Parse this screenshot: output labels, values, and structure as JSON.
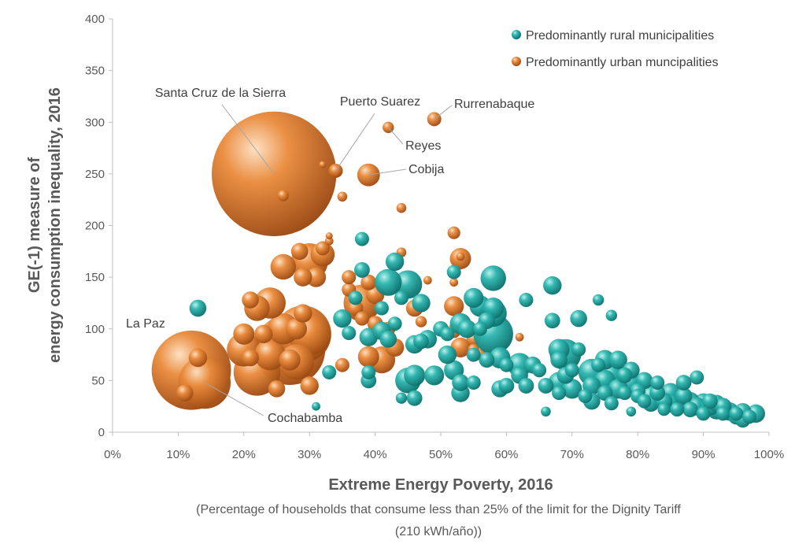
{
  "chart_data": {
    "type": "scatter",
    "title": "",
    "xlabel": "Extreme Energy Poverty, 2016",
    "xlabel_note_line1": "(Percentage of households that consume less than 25% of the limit for the Dignity Tariff",
    "xlabel_note_line2": "(210 kWh/año))",
    "ylabel_line1": "GE(-1) measure of",
    "ylabel_line2": "energy consumption inequality, 2016",
    "xlim": [
      0,
      1
    ],
    "ylim": [
      0,
      400
    ],
    "x_ticks": [
      "0%",
      "10%",
      "20%",
      "30%",
      "40%",
      "50%",
      "60%",
      "70%",
      "80%",
      "90%",
      "100%"
    ],
    "y_ticks": [
      "0",
      "50",
      "100",
      "150",
      "200",
      "250",
      "300",
      "350",
      "400"
    ],
    "grid": false,
    "legend_position": "top-right",
    "colors": {
      "rural": "#17a09b",
      "urban": "#e07a2e",
      "axis": "#bfbfbf",
      "text": "#595959"
    },
    "series": [
      {
        "name": "Predominantly rural municipalities",
        "key": "rural",
        "points": [
          [
            0.13,
            120,
            1.2
          ],
          [
            0.31,
            25,
            0.6
          ],
          [
            0.33,
            58,
            1.0
          ],
          [
            0.35,
            110,
            1.3
          ],
          [
            0.36,
            96,
            1.0
          ],
          [
            0.37,
            130,
            1.0
          ],
          [
            0.38,
            157,
            1.1
          ],
          [
            0.38,
            187,
            1.0
          ],
          [
            0.39,
            92,
            1.3
          ],
          [
            0.39,
            58,
            1.0
          ],
          [
            0.39,
            50,
            1.1
          ],
          [
            0.41,
            120,
            1.0
          ],
          [
            0.41,
            98,
            1.3
          ],
          [
            0.42,
            145,
            1.9
          ],
          [
            0.42,
            90,
            1.2
          ],
          [
            0.43,
            165,
            1.3
          ],
          [
            0.43,
            105,
            1.0
          ],
          [
            0.44,
            130,
            1.0
          ],
          [
            0.44,
            33,
            0.8
          ],
          [
            0.45,
            143,
            2.0
          ],
          [
            0.45,
            50,
            1.8
          ],
          [
            0.46,
            85,
            1.3
          ],
          [
            0.46,
            55,
            1.5
          ],
          [
            0.46,
            33,
            1.1
          ],
          [
            0.47,
            125,
            1.3
          ],
          [
            0.47,
            88,
            1.1
          ],
          [
            0.48,
            90,
            1.3
          ],
          [
            0.49,
            55,
            1.4
          ],
          [
            0.5,
            100,
            1.1
          ],
          [
            0.51,
            75,
            1.3
          ],
          [
            0.51,
            95,
            1.0
          ],
          [
            0.52,
            60,
            1.4
          ],
          [
            0.52,
            155,
            1.0
          ],
          [
            0.53,
            48,
            1.2
          ],
          [
            0.53,
            38,
            1.3
          ],
          [
            0.53,
            105,
            1.5
          ],
          [
            0.54,
            100,
            1.3
          ],
          [
            0.55,
            130,
            1.4
          ],
          [
            0.55,
            75,
            1.0
          ],
          [
            0.55,
            48,
            1.0
          ],
          [
            0.56,
            100,
            1.0
          ],
          [
            0.56,
            122,
            1.5
          ],
          [
            0.57,
            70,
            1.1
          ],
          [
            0.57,
            108,
            1.2
          ],
          [
            0.58,
            149,
            1.8
          ],
          [
            0.58,
            95,
            2.8
          ],
          [
            0.58,
            115,
            1.9
          ],
          [
            0.58,
            120,
            1.5
          ],
          [
            0.59,
            72,
            1.5
          ],
          [
            0.59,
            42,
            1.2
          ],
          [
            0.6,
            45,
            1.1
          ],
          [
            0.6,
            65,
            1.0
          ],
          [
            0.62,
            65,
            1.7
          ],
          [
            0.62,
            55,
            1.2
          ],
          [
            0.63,
            128,
            1.0
          ],
          [
            0.63,
            45,
            1.1
          ],
          [
            0.64,
            65,
            1.2
          ],
          [
            0.65,
            60,
            1.0
          ],
          [
            0.66,
            20,
            0.7
          ],
          [
            0.66,
            45,
            1.1
          ],
          [
            0.67,
            108,
            1.1
          ],
          [
            0.67,
            142,
            1.3
          ],
          [
            0.68,
            48,
            1.5
          ],
          [
            0.68,
            80,
            1.5
          ],
          [
            0.68,
            70,
            1.2
          ],
          [
            0.68,
            38,
            1.0
          ],
          [
            0.69,
            75,
            2.2
          ],
          [
            0.69,
            55,
            1.2
          ],
          [
            0.7,
            60,
            1.0
          ],
          [
            0.7,
            42,
            1.4
          ],
          [
            0.71,
            110,
            1.2
          ],
          [
            0.71,
            80,
            1.0
          ],
          [
            0.72,
            35,
            1.0
          ],
          [
            0.73,
            58,
            1.9
          ],
          [
            0.73,
            45,
            1.3
          ],
          [
            0.73,
            30,
            1.2
          ],
          [
            0.74,
            128,
            0.8
          ],
          [
            0.74,
            65,
            1.0
          ],
          [
            0.75,
            70,
            1.4
          ],
          [
            0.75,
            50,
            1.5
          ],
          [
            0.75,
            38,
            1.1
          ],
          [
            0.76,
            113,
            0.8
          ],
          [
            0.76,
            55,
            1.8
          ],
          [
            0.76,
            28,
            1.0
          ],
          [
            0.77,
            70,
            1.3
          ],
          [
            0.77,
            42,
            1.4
          ],
          [
            0.78,
            55,
            1.1
          ],
          [
            0.78,
            38,
            1.0
          ],
          [
            0.79,
            20,
            0.7
          ],
          [
            0.79,
            60,
            1.2
          ],
          [
            0.79,
            48,
            1.5
          ],
          [
            0.8,
            35,
            1.0
          ],
          [
            0.8,
            40,
            1.1
          ],
          [
            0.81,
            50,
            1.2
          ],
          [
            0.81,
            30,
            1.0
          ],
          [
            0.82,
            35,
            1.5
          ],
          [
            0.82,
            28,
            1.2
          ],
          [
            0.83,
            38,
            1.1
          ],
          [
            0.83,
            48,
            1.0
          ],
          [
            0.84,
            30,
            1.2
          ],
          [
            0.84,
            22,
            0.9
          ],
          [
            0.85,
            38,
            1.4
          ],
          [
            0.85,
            28,
            1.3
          ],
          [
            0.86,
            30,
            1.5
          ],
          [
            0.86,
            22,
            1.0
          ],
          [
            0.87,
            48,
            1.1
          ],
          [
            0.87,
            35,
            1.2
          ],
          [
            0.88,
            30,
            1.3
          ],
          [
            0.88,
            22,
            1.1
          ],
          [
            0.89,
            25,
            1.3
          ],
          [
            0.89,
            53,
            1.0
          ],
          [
            0.9,
            28,
            1.4
          ],
          [
            0.9,
            18,
            1.0
          ],
          [
            0.91,
            25,
            1.3
          ],
          [
            0.91,
            30,
            1.1
          ],
          [
            0.92,
            22,
            1.4
          ],
          [
            0.92,
            28,
            1.2
          ],
          [
            0.93,
            18,
            1.0
          ],
          [
            0.93,
            25,
            1.2
          ],
          [
            0.94,
            20,
            1.3
          ],
          [
            0.95,
            15,
            1.1
          ],
          [
            0.95,
            18,
            1.0
          ],
          [
            0.96,
            12,
            1.1
          ],
          [
            0.96,
            20,
            1.2
          ],
          [
            0.97,
            15,
            1.0
          ],
          [
            0.98,
            18,
            1.3
          ]
        ]
      },
      {
        "name": "Predominantly urban muncipalities",
        "key": "urban",
        "points": [
          [
            0.246,
            250,
            8.8
          ],
          [
            0.12,
            60,
            5.6
          ],
          [
            0.14,
            48,
            3.7
          ],
          [
            0.27,
            80,
            5.0
          ],
          [
            0.29,
            95,
            4.0
          ],
          [
            0.3,
            95,
            3.0
          ],
          [
            0.28,
            68,
            2.5
          ],
          [
            0.22,
            58,
            3.3
          ],
          [
            0.2,
            80,
            2.4
          ],
          [
            0.24,
            75,
            2.2
          ],
          [
            0.26,
            100,
            2.2
          ],
          [
            0.24,
            125,
            2.2
          ],
          [
            0.22,
            120,
            1.8
          ],
          [
            0.2,
            95,
            1.5
          ],
          [
            0.21,
            72,
            1.2
          ],
          [
            0.27,
            70,
            1.5
          ],
          [
            0.28,
            100,
            1.5
          ],
          [
            0.29,
            115,
            1.3
          ],
          [
            0.3,
            165,
            2.6
          ],
          [
            0.32,
            172,
            1.7
          ],
          [
            0.26,
            160,
            1.8
          ],
          [
            0.29,
            150,
            1.3
          ],
          [
            0.31,
            150,
            1.4
          ],
          [
            0.3,
            45,
            1.3
          ],
          [
            0.13,
            72,
            1.3
          ],
          [
            0.11,
            38,
            1.2
          ],
          [
            0.25,
            42,
            1.2
          ],
          [
            0.23,
            95,
            1.3
          ],
          [
            0.21,
            128,
            1.2
          ],
          [
            0.285,
            175,
            1.2
          ],
          [
            0.32,
            178,
            1.0
          ],
          [
            0.33,
            185,
            0.6
          ],
          [
            0.33,
            190,
            0.5
          ],
          [
            0.32,
            259,
            0.5
          ],
          [
            0.34,
            253,
            1.0
          ],
          [
            0.35,
            228,
            0.7
          ],
          [
            0.26,
            229,
            0.8
          ],
          [
            0.38,
            125,
            2.6
          ],
          [
            0.4,
            133,
            1.3
          ],
          [
            0.39,
            145,
            1.1
          ],
          [
            0.36,
            138,
            1.0
          ],
          [
            0.36,
            150,
            1.0
          ],
          [
            0.37,
            120,
            1.1
          ],
          [
            0.38,
            110,
            1.0
          ],
          [
            0.39,
            73,
            1.5
          ],
          [
            0.41,
            70,
            1.9
          ],
          [
            0.4,
            105,
            1.1
          ],
          [
            0.43,
            82,
            1.3
          ],
          [
            0.42,
            100,
            1.0
          ],
          [
            0.35,
            65,
            1.0
          ],
          [
            0.44,
            217,
            0.7
          ],
          [
            0.44,
            174,
            0.7
          ],
          [
            0.45,
            142,
            1.4
          ],
          [
            0.46,
            120,
            1.2
          ],
          [
            0.47,
            107,
            0.8
          ],
          [
            0.48,
            147,
            0.6
          ],
          [
            0.52,
            122,
            1.4
          ],
          [
            0.52,
            193,
            0.9
          ],
          [
            0.53,
            168,
            1.5
          ],
          [
            0.53,
            170,
            0.6
          ],
          [
            0.52,
            145,
            0.6
          ],
          [
            0.52,
            98,
            1.0
          ],
          [
            0.53,
            82,
            1.4
          ],
          [
            0.55,
            90,
            1.0
          ],
          [
            0.55,
            80,
            0.8
          ],
          [
            0.56,
            75,
            0.8
          ],
          [
            0.58,
            75,
            0.6
          ],
          [
            0.62,
            92,
            0.6
          ],
          [
            0.825,
            38,
            0.6
          ],
          [
            0.91,
            28,
            0.6
          ],
          [
            0.39,
            249,
            1.6
          ],
          [
            0.42,
            295,
            0.8
          ],
          [
            0.49,
            303,
            1.0
          ],
          [
            0.34,
            253,
            0.9
          ]
        ]
      }
    ],
    "annotations": [
      {
        "label": "Santa Cruz de la Sierra",
        "point": [
          0.246,
          250
        ]
      },
      {
        "label": "Puerto Suarez",
        "point": [
          0.34,
          253
        ]
      },
      {
        "label": "Rurrenabaque",
        "point": [
          0.49,
          303
        ]
      },
      {
        "label": "Reyes",
        "point": [
          0.42,
          295
        ]
      },
      {
        "label": "Cobija",
        "point": [
          0.39,
          249
        ]
      },
      {
        "label": "La Paz",
        "point": [
          0.12,
          60
        ]
      },
      {
        "label": "Cochabamba",
        "point": [
          0.14,
          48
        ]
      }
    ]
  }
}
